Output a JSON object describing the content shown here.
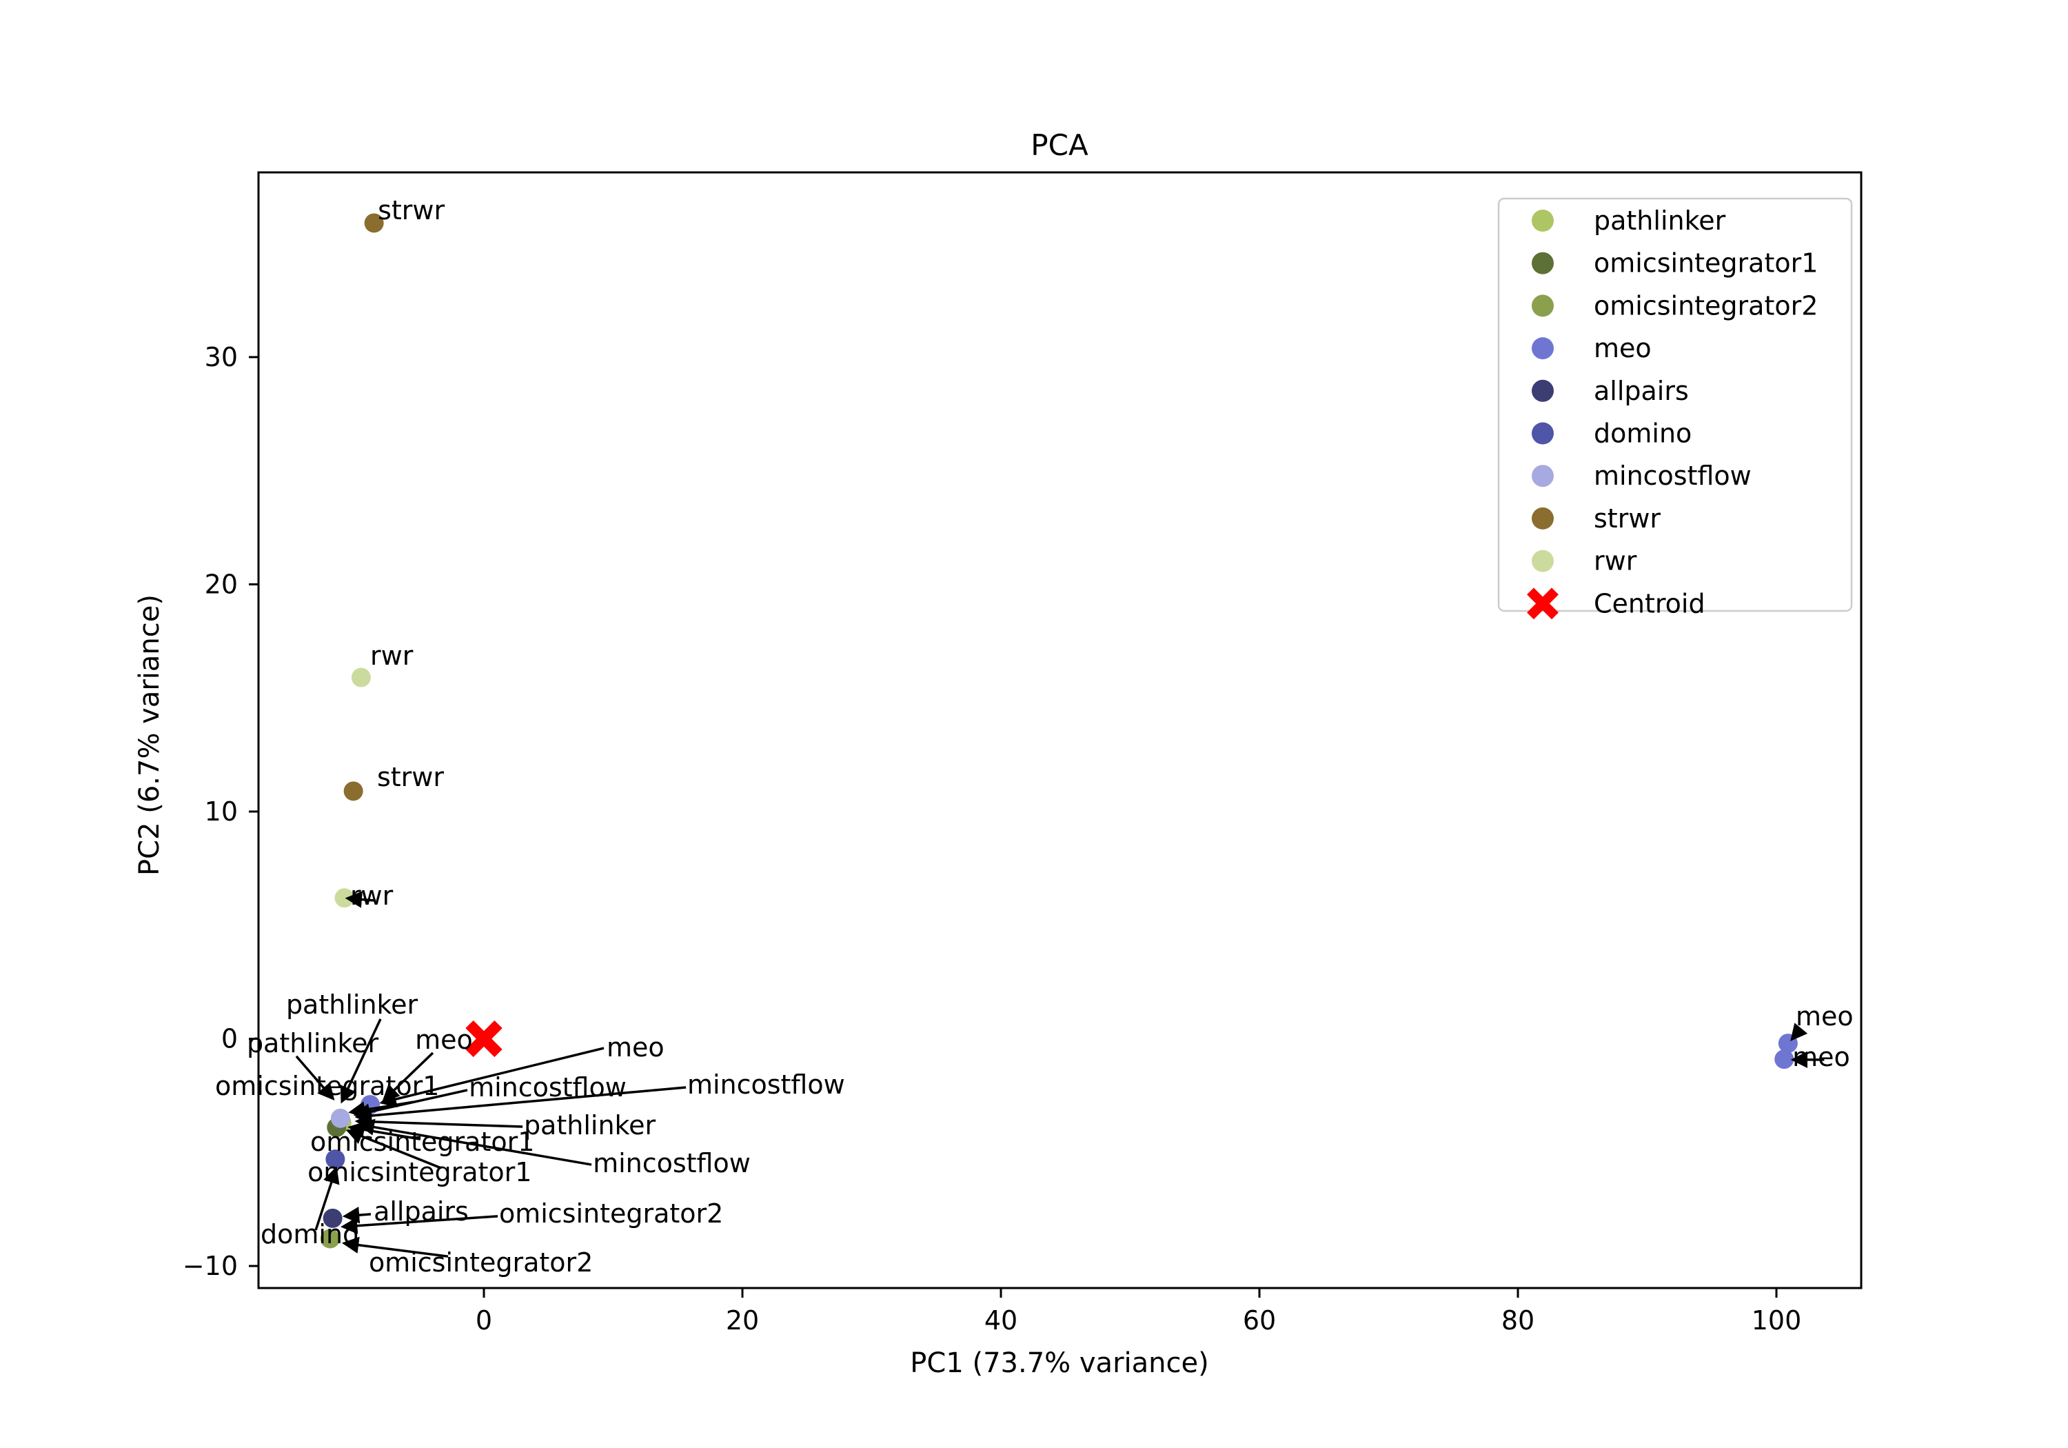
{
  "figure": {
    "title": "PCA",
    "xlabel": "PC1 (73.7% variance)",
    "ylabel": "PC2 (6.7% variance)"
  },
  "chart_data": {
    "type": "scatter",
    "title": "PCA",
    "xlabel": "PC1 (73.7% variance)",
    "ylabel": "PC2 (6.7% variance)",
    "xlim": [
      -17.44,
      106.56
    ],
    "ylim": [
      -10.97,
      38.13
    ],
    "x_ticks": [
      0,
      20,
      40,
      60,
      80,
      100
    ],
    "y_ticks": [
      -10,
      0,
      10,
      20,
      30
    ],
    "grid": false,
    "legend_position": "upper right",
    "point_radius": 14,
    "series_colors": {
      "pathlinker": "#aec564",
      "omicsintegrator1": "#5d7137",
      "omicsintegrator2": "#8aa04d",
      "meo": "#6f76d2",
      "allpairs": "#3b3d73",
      "domino": "#4f55a7",
      "mincostflow": "#a6aae0",
      "strwr": "#8a6d2f",
      "rwr": "#cbdb9d"
    },
    "points": [
      {
        "series": "strwr",
        "x": -8.5,
        "y": 35.9
      },
      {
        "series": "rwr",
        "x": -9.5,
        "y": 15.9
      },
      {
        "series": "strwr",
        "x": -10.1,
        "y": 10.9
      },
      {
        "series": "rwr",
        "x": -10.8,
        "y": 6.2
      },
      {
        "series": "pathlinker",
        "x": -11.0,
        "y": -3.7,
        "occluded": true
      },
      {
        "series": "omicsintegrator1",
        "x": -11.4,
        "y": -3.9,
        "occluded": true
      },
      {
        "series": "mincostflow",
        "x": -11.1,
        "y": -3.5
      },
      {
        "series": "meo",
        "x": -8.8,
        "y": -2.9
      },
      {
        "series": "domino",
        "x": -11.5,
        "y": -5.3
      },
      {
        "series": "omicsintegrator2",
        "x": -11.9,
        "y": -8.8
      },
      {
        "series": "allpairs",
        "x": -11.7,
        "y": -7.9
      },
      {
        "series": "meo",
        "x": 100.9,
        "y": -0.2
      },
      {
        "series": "meo",
        "x": 100.6,
        "y": -0.9
      }
    ],
    "centroid": {
      "label": "Centroid",
      "x": 0,
      "y": 0,
      "color": "#ff0000"
    },
    "annotations": [
      {
        "text": "strwr",
        "x": -8.21,
        "y": 36.07
      },
      {
        "text": "rwr",
        "x": -8.8,
        "y": 16.46
      },
      {
        "text": "strwr",
        "x": -8.27,
        "y": 11.12
      },
      {
        "text": "rwr",
        "x": -10.35,
        "y": 5.9,
        "arrow": {
          "x1": -8.37,
          "y1": 6.08,
          "x2": -10.55,
          "y2": 6.18
        }
      },
      {
        "text": "pathlinker",
        "x": -15.31,
        "y": 1.11,
        "arrow": {
          "x1": -8.0,
          "y1": 0.87,
          "x2": -10.98,
          "y2": -2.75
        }
      },
      {
        "text": "pathlinker",
        "x": -18.35,
        "y": -0.59,
        "arrow": {
          "x1": -14.51,
          "y1": -0.77,
          "x2": -11.68,
          "y2": -2.63
        }
      },
      {
        "text": "meo",
        "x": -5.33,
        "y": -0.44,
        "arrow": {
          "x1": -3.95,
          "y1": -0.62,
          "x2": -7.73,
          "y2": -2.69
        }
      },
      {
        "text": "meo",
        "x": 9.49,
        "y": -0.77,
        "arrow": {
          "x1": 9.28,
          "y1": -0.41,
          "x2": -7.9,
          "y2": -2.81
        }
      },
      {
        "text": "omicsintegrator1",
        "x": -20.8,
        "y": -2.47,
        "arrow": {
          "x1": -5.44,
          "y1": -2.78,
          "x2": -10.3,
          "y2": -3.23
        }
      },
      {
        "text": "mincostflow",
        "x": -1.17,
        "y": -2.53,
        "arrow": {
          "x1": -1.28,
          "y1": -2.26,
          "x2": -9.9,
          "y2": -3.35
        }
      },
      {
        "text": "mincostflow",
        "x": 15.73,
        "y": -2.41,
        "arrow": {
          "x1": 15.63,
          "y1": -2.14,
          "x2": -9.8,
          "y2": -3.44
        }
      },
      {
        "text": "pathlinker",
        "x": 3.09,
        "y": -4.2,
        "arrow": {
          "x1": 2.99,
          "y1": -3.87,
          "x2": -9.8,
          "y2": -3.63
        }
      },
      {
        "text": "omicsintegrator1",
        "x": -13.44,
        "y": -4.93,
        "arrow": {
          "x1": -4.91,
          "y1": -4.42,
          "x2": -10.35,
          "y2": -3.9
        }
      },
      {
        "text": "omicsintegrator1",
        "x": -13.65,
        "y": -6.27,
        "arrow": {
          "x1": -3.31,
          "y1": -5.69,
          "x2": -10.5,
          "y2": -4.05
        }
      },
      {
        "text": "mincostflow",
        "x": 8.43,
        "y": -5.87,
        "arrow": {
          "x1": 8.32,
          "y1": -5.54,
          "x2": -9.6,
          "y2": -3.78
        }
      },
      {
        "text": "allpairs",
        "x": -8.53,
        "y": -8.0,
        "arrow": {
          "x1": -8.75,
          "y1": -7.72,
          "x2": -10.75,
          "y2": -7.81
        }
      },
      {
        "text": "omicsintegrator2",
        "x": 1.17,
        "y": -8.09,
        "arrow": {
          "x1": 1.07,
          "y1": -7.81,
          "x2": -10.9,
          "y2": -8.27
        }
      },
      {
        "text": "domino",
        "x": -17.28,
        "y": -9.0,
        "arrow": {
          "x1": -13.01,
          "y1": -8.42,
          "x2": -11.45,
          "y2": -5.72
        }
      },
      {
        "text": "omicsintegrator2",
        "x": -8.91,
        "y": -10.24,
        "arrow": {
          "x1": -2.77,
          "y1": -9.58,
          "x2": -10.8,
          "y2": -9.0
        }
      },
      {
        "text": "meo",
        "x": 101.49,
        "y": 0.59,
        "arrow": {
          "x1": 101.87,
          "y1": 0.44,
          "x2": 101.2,
          "y2": -0.02
        }
      },
      {
        "text": "meo",
        "x": 101.23,
        "y": -1.2,
        "arrow": {
          "x1": 103.7,
          "y1": -0.92,
          "x2": 101.3,
          "y2": -0.92
        }
      }
    ],
    "legend": {
      "items": [
        {
          "label": "pathlinker",
          "color": "#aec564",
          "marker": "circle"
        },
        {
          "label": "omicsintegrator1",
          "color": "#5d7137",
          "marker": "circle"
        },
        {
          "label": "omicsintegrator2",
          "color": "#8aa04d",
          "marker": "circle"
        },
        {
          "label": "meo",
          "color": "#6f76d2",
          "marker": "circle"
        },
        {
          "label": "allpairs",
          "color": "#3b3d73",
          "marker": "circle"
        },
        {
          "label": "domino",
          "color": "#4f55a7",
          "marker": "circle"
        },
        {
          "label": "mincostflow",
          "color": "#a6aae0",
          "marker": "circle"
        },
        {
          "label": "strwr",
          "color": "#8a6d2f",
          "marker": "circle"
        },
        {
          "label": "rwr",
          "color": "#cbdb9d",
          "marker": "circle"
        },
        {
          "label": "Centroid",
          "color": "#ff0000",
          "marker": "x"
        }
      ]
    }
  }
}
